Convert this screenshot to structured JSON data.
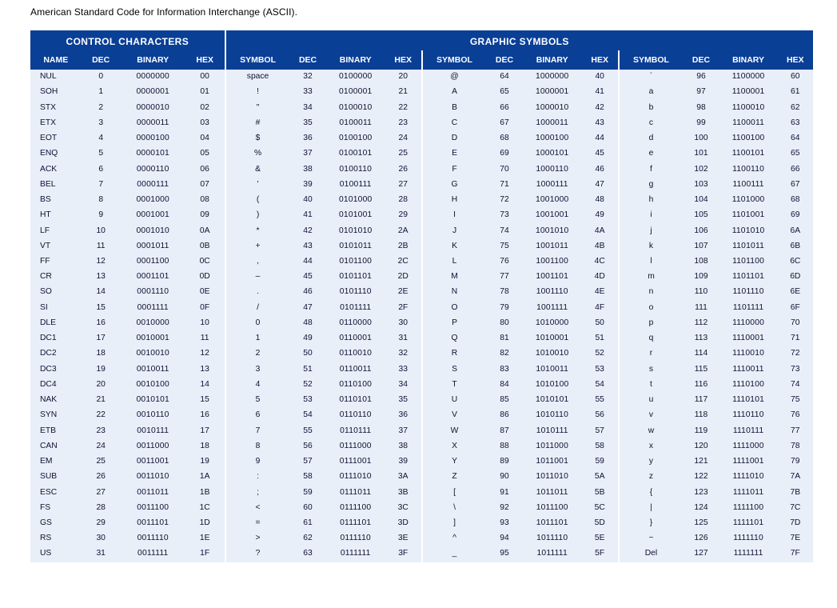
{
  "page_title": "American Standard Code for Information Interchange (ASCII).",
  "super_headers": {
    "control": "CONTROL CHARACTERS",
    "graphic": "GRAPHIC SYMBOLS"
  },
  "column_headers": {
    "name": "NAME",
    "dec": "DEC",
    "binary": "BINARY",
    "hex": "HEX",
    "symbol": "SYMBOL"
  },
  "colors": {
    "header_bg": "#0a3f96",
    "header_fg": "#ffffff",
    "body_bg": "#e8eff9",
    "body_fg": "#101030"
  },
  "rows": [
    {
      "c0": {
        "name": "NUL",
        "dec": "0",
        "bin": "0000000",
        "hex": "00"
      },
      "c1": {
        "sym": "space",
        "dec": "32",
        "bin": "0100000",
        "hex": "20"
      },
      "c2": {
        "sym": "@",
        "dec": "64",
        "bin": "1000000",
        "hex": "40"
      },
      "c3": {
        "sym": "`",
        "dec": "96",
        "bin": "1100000",
        "hex": "60"
      }
    },
    {
      "c0": {
        "name": "SOH",
        "dec": "1",
        "bin": "0000001",
        "hex": "01"
      },
      "c1": {
        "sym": "!",
        "dec": "33",
        "bin": "0100001",
        "hex": "21"
      },
      "c2": {
        "sym": "A",
        "dec": "65",
        "bin": "1000001",
        "hex": "41"
      },
      "c3": {
        "sym": "a",
        "dec": "97",
        "bin": "1100001",
        "hex": "61"
      }
    },
    {
      "c0": {
        "name": "STX",
        "dec": "2",
        "bin": "0000010",
        "hex": "02"
      },
      "c1": {
        "sym": "\"",
        "dec": "34",
        "bin": "0100010",
        "hex": "22"
      },
      "c2": {
        "sym": "B",
        "dec": "66",
        "bin": "1000010",
        "hex": "42"
      },
      "c3": {
        "sym": "b",
        "dec": "98",
        "bin": "1100010",
        "hex": "62"
      }
    },
    {
      "c0": {
        "name": "ETX",
        "dec": "3",
        "bin": "0000011",
        "hex": "03"
      },
      "c1": {
        "sym": "#",
        "dec": "35",
        "bin": "0100011",
        "hex": "23"
      },
      "c2": {
        "sym": "C",
        "dec": "67",
        "bin": "1000011",
        "hex": "43"
      },
      "c3": {
        "sym": "c",
        "dec": "99",
        "bin": "1100011",
        "hex": "63"
      }
    },
    {
      "c0": {
        "name": "EOT",
        "dec": "4",
        "bin": "0000100",
        "hex": "04"
      },
      "c1": {
        "sym": "$",
        "dec": "36",
        "bin": "0100100",
        "hex": "24"
      },
      "c2": {
        "sym": "D",
        "dec": "68",
        "bin": "1000100",
        "hex": "44"
      },
      "c3": {
        "sym": "d",
        "dec": "100",
        "bin": "1100100",
        "hex": "64"
      }
    },
    {
      "c0": {
        "name": "ENQ",
        "dec": "5",
        "bin": "0000101",
        "hex": "05"
      },
      "c1": {
        "sym": "%",
        "dec": "37",
        "bin": "0100101",
        "hex": "25"
      },
      "c2": {
        "sym": "E",
        "dec": "69",
        "bin": "1000101",
        "hex": "45"
      },
      "c3": {
        "sym": "e",
        "dec": "101",
        "bin": "1100101",
        "hex": "65"
      }
    },
    {
      "c0": {
        "name": "ACK",
        "dec": "6",
        "bin": "0000110",
        "hex": "06"
      },
      "c1": {
        "sym": "&",
        "dec": "38",
        "bin": "0100110",
        "hex": "26"
      },
      "c2": {
        "sym": "F",
        "dec": "70",
        "bin": "1000110",
        "hex": "46"
      },
      "c3": {
        "sym": "f",
        "dec": "102",
        "bin": "1100110",
        "hex": "66"
      }
    },
    {
      "c0": {
        "name": "BEL",
        "dec": "7",
        "bin": "0000111",
        "hex": "07"
      },
      "c1": {
        "sym": "'",
        "dec": "39",
        "bin": "0100111",
        "hex": "27"
      },
      "c2": {
        "sym": "G",
        "dec": "71",
        "bin": "1000111",
        "hex": "47"
      },
      "c3": {
        "sym": "g",
        "dec": "103",
        "bin": "1100111",
        "hex": "67"
      }
    },
    {
      "c0": {
        "name": "BS",
        "dec": "8",
        "bin": "0001000",
        "hex": "08"
      },
      "c1": {
        "sym": "(",
        "dec": "40",
        "bin": "0101000",
        "hex": "28"
      },
      "c2": {
        "sym": "H",
        "dec": "72",
        "bin": "1001000",
        "hex": "48"
      },
      "c3": {
        "sym": "h",
        "dec": "104",
        "bin": "1101000",
        "hex": "68"
      }
    },
    {
      "c0": {
        "name": "HT",
        "dec": "9",
        "bin": "0001001",
        "hex": "09"
      },
      "c1": {
        "sym": ")",
        "dec": "41",
        "bin": "0101001",
        "hex": "29"
      },
      "c2": {
        "sym": "I",
        "dec": "73",
        "bin": "1001001",
        "hex": "49"
      },
      "c3": {
        "sym": "i",
        "dec": "105",
        "bin": "1101001",
        "hex": "69"
      }
    },
    {
      "c0": {
        "name": "LF",
        "dec": "10",
        "bin": "0001010",
        "hex": "0A"
      },
      "c1": {
        "sym": "*",
        "dec": "42",
        "bin": "0101010",
        "hex": "2A"
      },
      "c2": {
        "sym": "J",
        "dec": "74",
        "bin": "1001010",
        "hex": "4A"
      },
      "c3": {
        "sym": "j",
        "dec": "106",
        "bin": "1101010",
        "hex": "6A"
      }
    },
    {
      "c0": {
        "name": "VT",
        "dec": "11",
        "bin": "0001011",
        "hex": "0B"
      },
      "c1": {
        "sym": "+",
        "dec": "43",
        "bin": "0101011",
        "hex": "2B"
      },
      "c2": {
        "sym": "K",
        "dec": "75",
        "bin": "1001011",
        "hex": "4B"
      },
      "c3": {
        "sym": "k",
        "dec": "107",
        "bin": "1101011",
        "hex": "6B"
      }
    },
    {
      "c0": {
        "name": "FF",
        "dec": "12",
        "bin": "0001100",
        "hex": "0C"
      },
      "c1": {
        "sym": ",",
        "dec": "44",
        "bin": "0101100",
        "hex": "2C"
      },
      "c2": {
        "sym": "L",
        "dec": "76",
        "bin": "1001100",
        "hex": "4C"
      },
      "c3": {
        "sym": "l",
        "dec": "108",
        "bin": "1101100",
        "hex": "6C"
      }
    },
    {
      "c0": {
        "name": "CR",
        "dec": "13",
        "bin": "0001101",
        "hex": "0D"
      },
      "c1": {
        "sym": "–",
        "dec": "45",
        "bin": "0101101",
        "hex": "2D"
      },
      "c2": {
        "sym": "M",
        "dec": "77",
        "bin": "1001101",
        "hex": "4D"
      },
      "c3": {
        "sym": "m",
        "dec": "109",
        "bin": "1101101",
        "hex": "6D"
      }
    },
    {
      "c0": {
        "name": "SO",
        "dec": "14",
        "bin": "0001110",
        "hex": "0E"
      },
      "c1": {
        "sym": ".",
        "dec": "46",
        "bin": "0101110",
        "hex": "2E"
      },
      "c2": {
        "sym": "N",
        "dec": "78",
        "bin": "1001110",
        "hex": "4E"
      },
      "c3": {
        "sym": "n",
        "dec": "110",
        "bin": "1101110",
        "hex": "6E"
      }
    },
    {
      "c0": {
        "name": "SI",
        "dec": "15",
        "bin": "0001111",
        "hex": "0F"
      },
      "c1": {
        "sym": "/",
        "dec": "47",
        "bin": "0101111",
        "hex": "2F"
      },
      "c2": {
        "sym": "O",
        "dec": "79",
        "bin": "1001111",
        "hex": "4F"
      },
      "c3": {
        "sym": "o",
        "dec": "111",
        "bin": "1101111",
        "hex": "6F"
      }
    },
    {
      "c0": {
        "name": "DLE",
        "dec": "16",
        "bin": "0010000",
        "hex": "10"
      },
      "c1": {
        "sym": "0",
        "dec": "48",
        "bin": "0110000",
        "hex": "30"
      },
      "c2": {
        "sym": "P",
        "dec": "80",
        "bin": "1010000",
        "hex": "50"
      },
      "c3": {
        "sym": "p",
        "dec": "112",
        "bin": "1110000",
        "hex": "70"
      }
    },
    {
      "c0": {
        "name": "DC1",
        "dec": "17",
        "bin": "0010001",
        "hex": "11"
      },
      "c1": {
        "sym": "1",
        "dec": "49",
        "bin": "0110001",
        "hex": "31"
      },
      "c2": {
        "sym": "Q",
        "dec": "81",
        "bin": "1010001",
        "hex": "51"
      },
      "c3": {
        "sym": "q",
        "dec": "113",
        "bin": "1110001",
        "hex": "71"
      }
    },
    {
      "c0": {
        "name": "DC2",
        "dec": "18",
        "bin": "0010010",
        "hex": "12"
      },
      "c1": {
        "sym": "2",
        "dec": "50",
        "bin": "0110010",
        "hex": "32"
      },
      "c2": {
        "sym": "R",
        "dec": "82",
        "bin": "1010010",
        "hex": "52"
      },
      "c3": {
        "sym": "r",
        "dec": "114",
        "bin": "1110010",
        "hex": "72"
      }
    },
    {
      "c0": {
        "name": "DC3",
        "dec": "19",
        "bin": "0010011",
        "hex": "13"
      },
      "c1": {
        "sym": "3",
        "dec": "51",
        "bin": "0110011",
        "hex": "33"
      },
      "c2": {
        "sym": "S",
        "dec": "83",
        "bin": "1010011",
        "hex": "53"
      },
      "c3": {
        "sym": "s",
        "dec": "115",
        "bin": "1110011",
        "hex": "73"
      }
    },
    {
      "c0": {
        "name": "DC4",
        "dec": "20",
        "bin": "0010100",
        "hex": "14"
      },
      "c1": {
        "sym": "4",
        "dec": "52",
        "bin": "0110100",
        "hex": "34"
      },
      "c2": {
        "sym": "T",
        "dec": "84",
        "bin": "1010100",
        "hex": "54"
      },
      "c3": {
        "sym": "t",
        "dec": "116",
        "bin": "1110100",
        "hex": "74"
      }
    },
    {
      "c0": {
        "name": "NAK",
        "dec": "21",
        "bin": "0010101",
        "hex": "15"
      },
      "c1": {
        "sym": "5",
        "dec": "53",
        "bin": "0110101",
        "hex": "35"
      },
      "c2": {
        "sym": "U",
        "dec": "85",
        "bin": "1010101",
        "hex": "55"
      },
      "c3": {
        "sym": "u",
        "dec": "117",
        "bin": "1110101",
        "hex": "75"
      }
    },
    {
      "c0": {
        "name": "SYN",
        "dec": "22",
        "bin": "0010110",
        "hex": "16"
      },
      "c1": {
        "sym": "6",
        "dec": "54",
        "bin": "0110110",
        "hex": "36"
      },
      "c2": {
        "sym": "V",
        "dec": "86",
        "bin": "1010110",
        "hex": "56"
      },
      "c3": {
        "sym": "v",
        "dec": "118",
        "bin": "1110110",
        "hex": "76"
      }
    },
    {
      "c0": {
        "name": "ETB",
        "dec": "23",
        "bin": "0010111",
        "hex": "17"
      },
      "c1": {
        "sym": "7",
        "dec": "55",
        "bin": "0110111",
        "hex": "37"
      },
      "c2": {
        "sym": "W",
        "dec": "87",
        "bin": "1010111",
        "hex": "57"
      },
      "c3": {
        "sym": "w",
        "dec": "119",
        "bin": "1110111",
        "hex": "77"
      }
    },
    {
      "c0": {
        "name": "CAN",
        "dec": "24",
        "bin": "0011000",
        "hex": "18"
      },
      "c1": {
        "sym": "8",
        "dec": "56",
        "bin": "0111000",
        "hex": "38"
      },
      "c2": {
        "sym": "X",
        "dec": "88",
        "bin": "1011000",
        "hex": "58"
      },
      "c3": {
        "sym": "x",
        "dec": "120",
        "bin": "1111000",
        "hex": "78"
      }
    },
    {
      "c0": {
        "name": "EM",
        "dec": "25",
        "bin": "0011001",
        "hex": "19"
      },
      "c1": {
        "sym": "9",
        "dec": "57",
        "bin": "0111001",
        "hex": "39"
      },
      "c2": {
        "sym": "Y",
        "dec": "89",
        "bin": "1011001",
        "hex": "59"
      },
      "c3": {
        "sym": "y",
        "dec": "121",
        "bin": "1111001",
        "hex": "79"
      }
    },
    {
      "c0": {
        "name": "SUB",
        "dec": "26",
        "bin": "0011010",
        "hex": "1A"
      },
      "c1": {
        "sym": ":",
        "dec": "58",
        "bin": "0111010",
        "hex": "3A"
      },
      "c2": {
        "sym": "Z",
        "dec": "90",
        "bin": "1011010",
        "hex": "5A"
      },
      "c3": {
        "sym": "z",
        "dec": "122",
        "bin": "1111010",
        "hex": "7A"
      }
    },
    {
      "c0": {
        "name": "ESC",
        "dec": "27",
        "bin": "0011011",
        "hex": "1B"
      },
      "c1": {
        "sym": ";",
        "dec": "59",
        "bin": "0111011",
        "hex": "3B"
      },
      "c2": {
        "sym": "[",
        "dec": "91",
        "bin": "1011011",
        "hex": "5B"
      },
      "c3": {
        "sym": "{",
        "dec": "123",
        "bin": "1111011",
        "hex": "7B"
      }
    },
    {
      "c0": {
        "name": "FS",
        "dec": "28",
        "bin": "0011100",
        "hex": "1C"
      },
      "c1": {
        "sym": "<",
        "dec": "60",
        "bin": "0111100",
        "hex": "3C"
      },
      "c2": {
        "sym": "\\",
        "dec": "92",
        "bin": "1011100",
        "hex": "5C"
      },
      "c3": {
        "sym": "|",
        "dec": "124",
        "bin": "1111100",
        "hex": "7C"
      }
    },
    {
      "c0": {
        "name": "GS",
        "dec": "29",
        "bin": "0011101",
        "hex": "1D"
      },
      "c1": {
        "sym": "=",
        "dec": "61",
        "bin": "0111101",
        "hex": "3D"
      },
      "c2": {
        "sym": "]",
        "dec": "93",
        "bin": "1011101",
        "hex": "5D"
      },
      "c3": {
        "sym": "}",
        "dec": "125",
        "bin": "1111101",
        "hex": "7D"
      }
    },
    {
      "c0": {
        "name": "RS",
        "dec": "30",
        "bin": "0011110",
        "hex": "1E"
      },
      "c1": {
        "sym": ">",
        "dec": "62",
        "bin": "0111110",
        "hex": "3E"
      },
      "c2": {
        "sym": "^",
        "dec": "94",
        "bin": "1011110",
        "hex": "5E"
      },
      "c3": {
        "sym": "~",
        "dec": "126",
        "bin": "1111110",
        "hex": "7E"
      }
    },
    {
      "c0": {
        "name": "US",
        "dec": "31",
        "bin": "0011111",
        "hex": "1F"
      },
      "c1": {
        "sym": "?",
        "dec": "63",
        "bin": "0111111",
        "hex": "3F"
      },
      "c2": {
        "sym": "_",
        "dec": "95",
        "bin": "1011111",
        "hex": "5F"
      },
      "c3": {
        "sym": "Del",
        "dec": "127",
        "bin": "1111111",
        "hex": "7F"
      }
    }
  ],
  "table_style": {
    "type": "table",
    "columns_per_group": 4,
    "groups": 4,
    "font_size_body": 10.3,
    "font_size_header": 11,
    "row_height": 19.5
  }
}
